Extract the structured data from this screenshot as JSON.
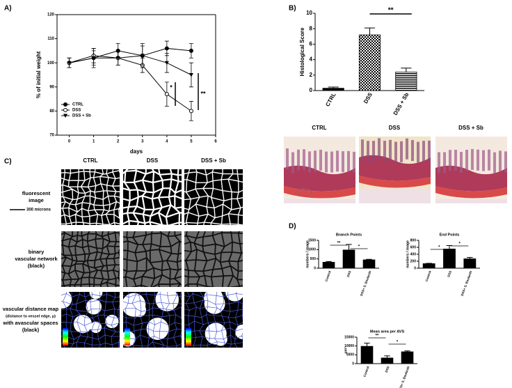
{
  "panel_labels": [
    "A)",
    "B)",
    "C)",
    "D)"
  ],
  "histology": {
    "labels": [
      "CTRL",
      "DSS",
      "DSS + Sb"
    ]
  },
  "vascular": {
    "columns": [
      "CTRL",
      "DSS",
      "DSS + Sb"
    ],
    "rows": [
      [
        "fluorescent",
        "image"
      ],
      [
        "binary",
        "vascular network",
        "(black)"
      ],
      [
        "vascular distance map",
        "(distance to vessel edge, μ)",
        "with avascular spaces",
        "(black)"
      ]
    ],
    "scale_bar": "300 microns"
  },
  "chart_data": [
    {
      "type": "line",
      "ylabel": "% of initial weight",
      "xlabel": "days",
      "x": [
        0,
        1,
        2,
        3,
        4,
        5
      ],
      "xlim": [
        -0.5,
        6
      ],
      "xticks": [
        0,
        1,
        2,
        3,
        4,
        5,
        6
      ],
      "ylim": [
        70,
        120
      ],
      "yticks": [
        70,
        80,
        90,
        100,
        110,
        120
      ],
      "legend": "lower left",
      "annotations": [
        "*",
        "**"
      ],
      "series": [
        {
          "name": "CTRL",
          "color": "#000000",
          "marker": "circle-filled",
          "values": [
            100,
            102,
            105,
            103,
            106,
            105
          ],
          "errors": [
            2,
            3,
            3,
            5,
            3,
            3
          ]
        },
        {
          "name": "DSS",
          "color": "#000000",
          "marker": "circle-open",
          "values": [
            100,
            103,
            102,
            99,
            87,
            80
          ],
          "errors": [
            2,
            3,
            3,
            3,
            5,
            4
          ]
        },
        {
          "name": "DSS + Sb",
          "color": "#000000",
          "marker": "triangle",
          "values": [
            100,
            102,
            102,
            103,
            100,
            95
          ],
          "errors": [
            2,
            4,
            3,
            4,
            4,
            5
          ]
        }
      ]
    },
    {
      "type": "bar",
      "ylabel": "Histological Score",
      "categories": [
        "CTRL",
        "DSS",
        "DSS + Sb"
      ],
      "values": [
        0.3,
        7.2,
        2.4
      ],
      "errors": [
        0.15,
        0.9,
        0.5
      ],
      "patterns": [
        "solid",
        "checker",
        "hstripe"
      ],
      "color": "#000000",
      "ylim": [
        0,
        10
      ],
      "yticks": [
        0,
        2,
        4,
        6,
        8,
        10
      ],
      "annotations": [
        "**"
      ]
    },
    {
      "type": "bar",
      "title": "Branch Points",
      "ylabel": "numbers / image",
      "categories": [
        "Control",
        "DSS",
        "DSS+ S. Boulardii"
      ],
      "values": [
        320,
        980,
        450
      ],
      "errors": [
        40,
        300,
        30
      ],
      "color": "#000000",
      "ylim": [
        0,
        1500
      ],
      "yticks": [
        0,
        500,
        1000,
        1500
      ],
      "annotations": [
        "**",
        "*"
      ]
    },
    {
      "type": "bar",
      "title": "End Points",
      "ylabel": "numbers / image",
      "categories": [
        "Control",
        "DSS",
        "DSS+ S. Boulardii"
      ],
      "values": [
        130,
        550,
        270
      ],
      "errors": [
        10,
        100,
        40
      ],
      "color": "#000000",
      "ylim": [
        0,
        800
      ],
      "yticks": [
        0,
        200,
        400,
        600,
        800
      ],
      "annotations": [
        "*",
        "*"
      ]
    },
    {
      "type": "bar",
      "title": "Mean area per AVS",
      "ylabel": "μm²",
      "categories": [
        "Control",
        "DSS",
        "DSS+ S. Boulardii"
      ],
      "values": [
        9800,
        3200,
        6700
      ],
      "errors": [
        1800,
        1200,
        500
      ],
      "color": "#000000",
      "ylim": [
        0,
        15000
      ],
      "yticks": [
        0,
        5000,
        10000,
        15000
      ],
      "annotations": [
        "**",
        "*"
      ]
    }
  ]
}
